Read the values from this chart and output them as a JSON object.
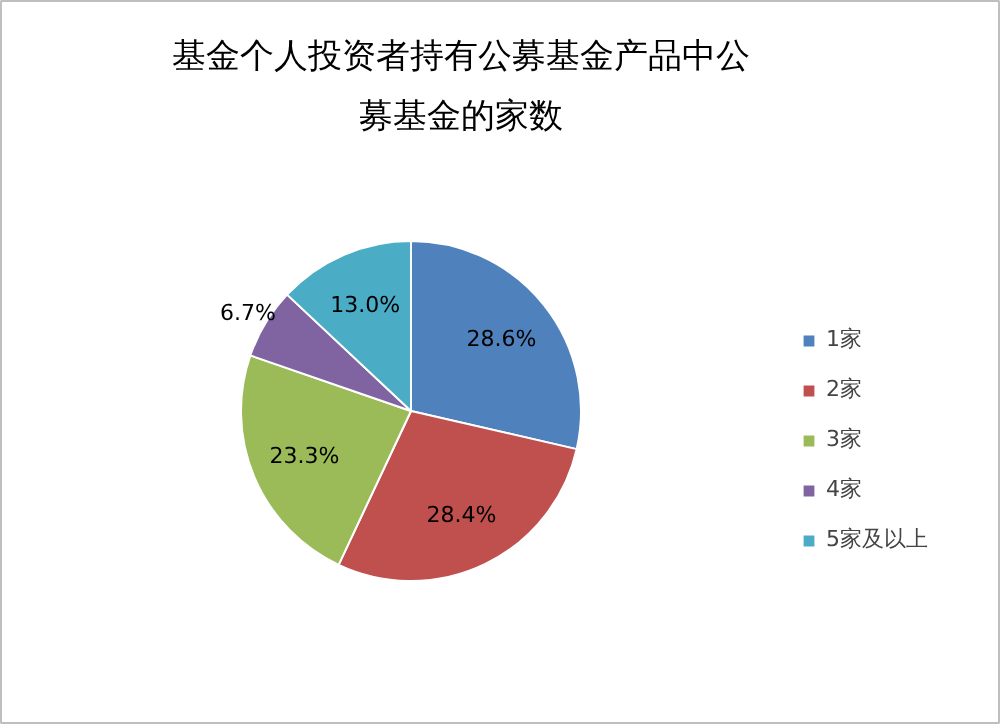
{
  "chart_data": {
    "type": "pie",
    "title": "基金个人投资者持有公募基金产品中公募基金的家数",
    "categories": [
      "1家",
      "2家",
      "3家",
      "4家",
      "5家及以上"
    ],
    "values": [
      28.6,
      28.4,
      23.3,
      6.7,
      13.0
    ],
    "value_labels": [
      "28.6%",
      "28.4%",
      "23.3%",
      "6.7%",
      "13.0%"
    ],
    "colors": [
      "#4f81bd",
      "#c0504d",
      "#9bbb59",
      "#8064a2",
      "#4bacc6"
    ],
    "legend": "right"
  }
}
